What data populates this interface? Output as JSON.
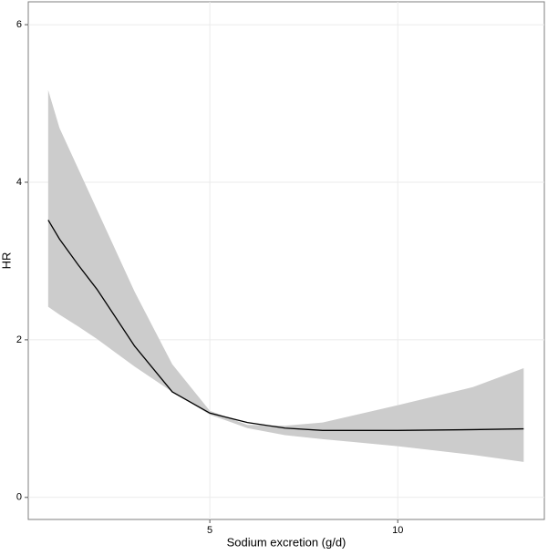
{
  "chart_data": {
    "type": "line",
    "x_label": "Sodium excretion (g/d)",
    "y_label": "HR",
    "x": [
      0.7,
      1,
      1.5,
      2,
      3,
      4,
      5,
      6,
      7,
      8,
      10,
      12,
      13.35
    ],
    "values": [
      3.52,
      3.28,
      2.95,
      2.64,
      1.92,
      1.34,
      1.07,
      0.95,
      0.88,
      0.85,
      0.85,
      0.86,
      0.87
    ],
    "lower": [
      2.42,
      2.32,
      2.17,
      2.01,
      1.66,
      1.34,
      1.05,
      0.88,
      0.79,
      0.74,
      0.65,
      0.54,
      0.45
    ],
    "upper": [
      5.17,
      4.69,
      4.17,
      3.65,
      2.61,
      1.69,
      1.1,
      0.92,
      0.91,
      0.95,
      1.17,
      1.4,
      1.64
    ],
    "color": "#000000",
    "band_color": "#cccccc",
    "xlim": [
      0.17,
      13.9
    ],
    "ylim": [
      -0.28,
      6.29
    ],
    "xticks": [
      5,
      10
    ],
    "yticks": [
      0,
      2,
      4,
      6
    ],
    "grid": true
  }
}
